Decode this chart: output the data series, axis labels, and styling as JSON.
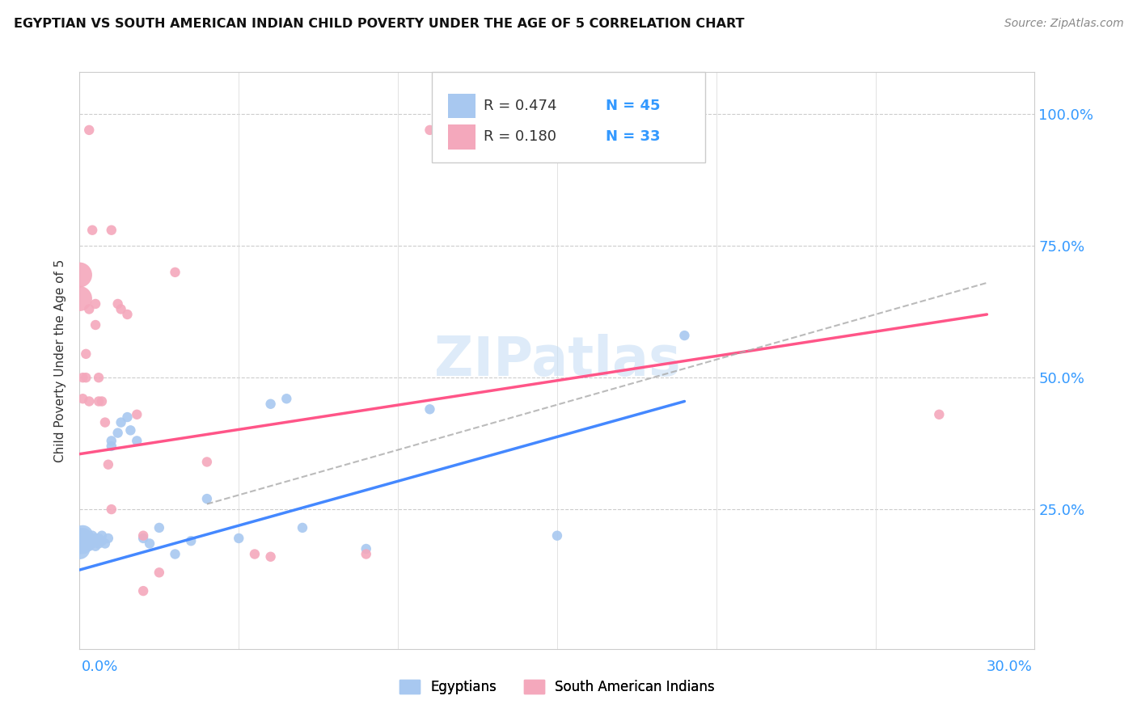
{
  "title": "EGYPTIAN VS SOUTH AMERICAN INDIAN CHILD POVERTY UNDER THE AGE OF 5 CORRELATION CHART",
  "source": "Source: ZipAtlas.com",
  "ylabel": "Child Poverty Under the Age of 5",
  "ytick_labels": [
    "100.0%",
    "75.0%",
    "50.0%",
    "25.0%"
  ],
  "ytick_values": [
    1.0,
    0.75,
    0.5,
    0.25
  ],
  "xlim": [
    0.0,
    0.3
  ],
  "ylim": [
    -0.015,
    1.08
  ],
  "blue_color": "#A8C8F0",
  "pink_color": "#F4A8BC",
  "blue_line_color": "#4488FF",
  "pink_line_color": "#FF5588",
  "dashed_color": "#AAAAAA",
  "watermark_color": "#C8DFF5",
  "egyptians_x": [
    0.0,
    0.0,
    0.0,
    0.001,
    0.001,
    0.001,
    0.002,
    0.002,
    0.002,
    0.003,
    0.003,
    0.003,
    0.004,
    0.004,
    0.004,
    0.005,
    0.005,
    0.005,
    0.006,
    0.006,
    0.007,
    0.007,
    0.008,
    0.009,
    0.01,
    0.01,
    0.012,
    0.013,
    0.015,
    0.016,
    0.018,
    0.02,
    0.022,
    0.025,
    0.03,
    0.035,
    0.04,
    0.05,
    0.06,
    0.065,
    0.07,
    0.09,
    0.11,
    0.15,
    0.19
  ],
  "egyptians_y": [
    0.195,
    0.185,
    0.175,
    0.185,
    0.195,
    0.2,
    0.185,
    0.195,
    0.19,
    0.18,
    0.19,
    0.195,
    0.185,
    0.195,
    0.2,
    0.18,
    0.195,
    0.19,
    0.185,
    0.195,
    0.19,
    0.2,
    0.185,
    0.195,
    0.37,
    0.38,
    0.395,
    0.415,
    0.425,
    0.4,
    0.38,
    0.195,
    0.185,
    0.215,
    0.165,
    0.19,
    0.27,
    0.195,
    0.45,
    0.46,
    0.215,
    0.175,
    0.44,
    0.2,
    0.58
  ],
  "south_american_x": [
    0.0,
    0.0,
    0.001,
    0.001,
    0.002,
    0.002,
    0.003,
    0.003,
    0.004,
    0.005,
    0.005,
    0.006,
    0.006,
    0.007,
    0.008,
    0.009,
    0.01,
    0.012,
    0.013,
    0.015,
    0.018,
    0.02,
    0.025,
    0.03,
    0.04,
    0.055,
    0.06,
    0.09,
    0.11,
    0.27,
    0.003,
    0.01,
    0.02
  ],
  "south_american_y": [
    0.695,
    0.65,
    0.5,
    0.46,
    0.5,
    0.545,
    0.455,
    0.63,
    0.78,
    0.6,
    0.64,
    0.5,
    0.455,
    0.455,
    0.415,
    0.335,
    0.78,
    0.64,
    0.63,
    0.62,
    0.43,
    0.2,
    0.13,
    0.7,
    0.34,
    0.165,
    0.16,
    0.165,
    0.97,
    0.43,
    0.97,
    0.25,
    0.095
  ],
  "blue_line_x": [
    0.0,
    0.19
  ],
  "blue_line_y": [
    0.135,
    0.455
  ],
  "pink_line_x": [
    0.0,
    0.285
  ],
  "pink_line_y": [
    0.355,
    0.62
  ],
  "dash_line_x": [
    0.04,
    0.285
  ],
  "dash_line_y": [
    0.26,
    0.68
  ],
  "legend_r1": "R = 0.474",
  "legend_n1": "N = 45",
  "legend_r2": "R = 0.180",
  "legend_n2": "N = 33"
}
